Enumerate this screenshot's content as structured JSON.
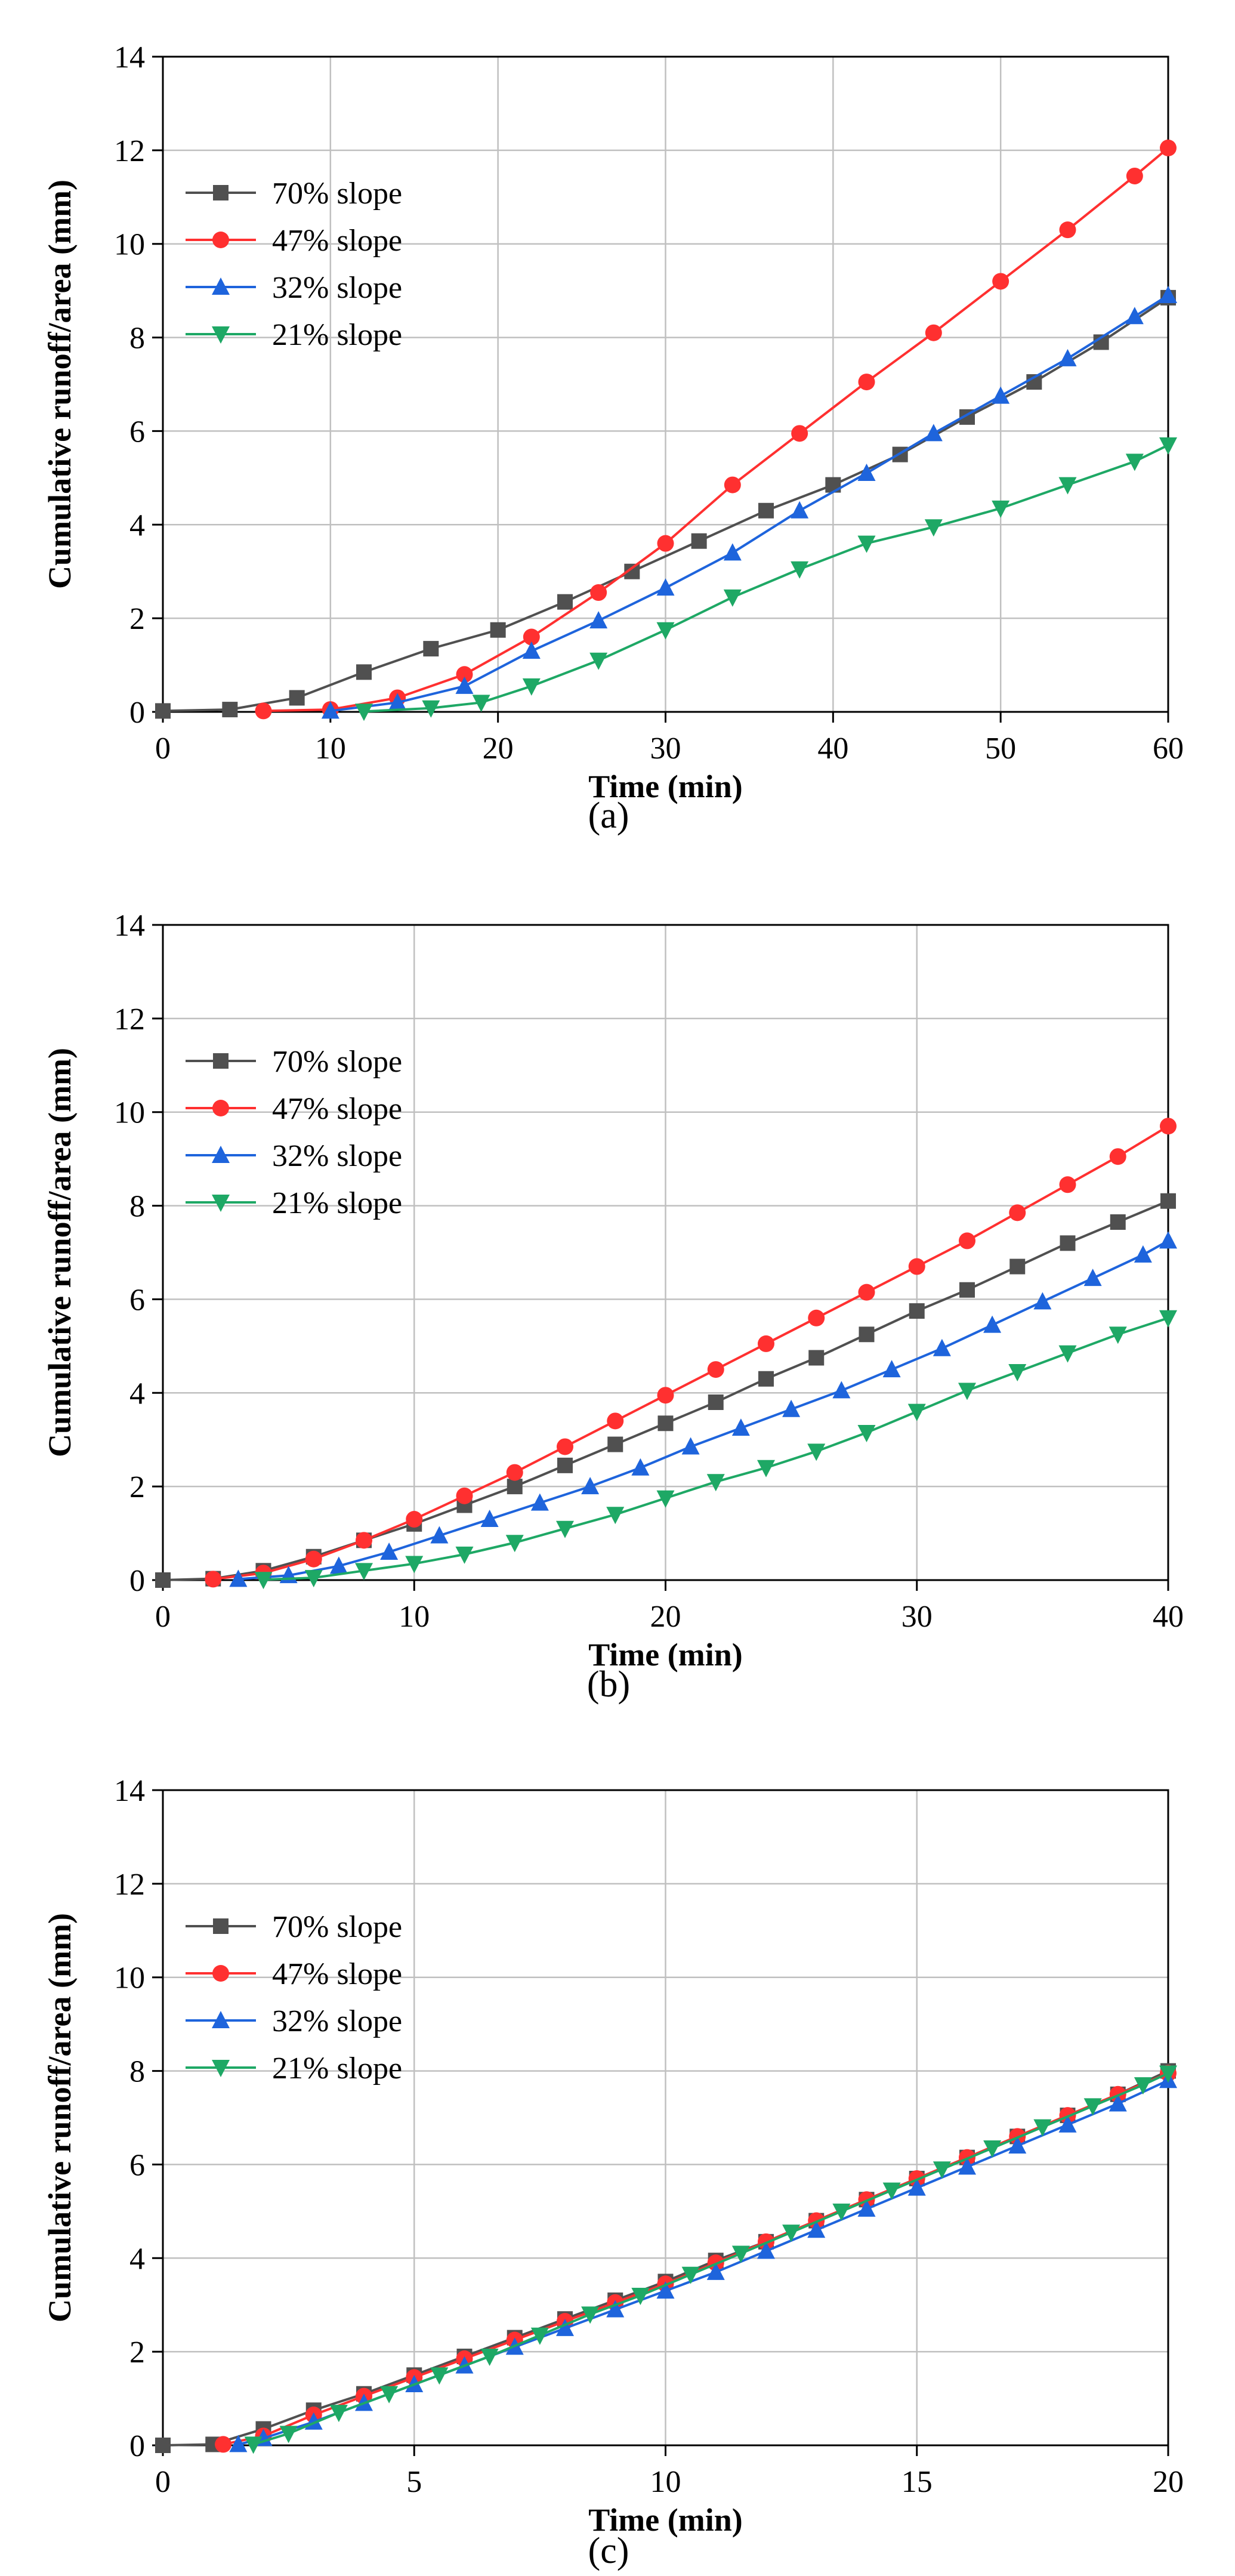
{
  "colors": {
    "70% slope": "#505050",
    "47% slope": "#ff3030",
    "32% slope": "#1e64dc",
    "21% slope": "#1ea865",
    "grid": "#c0c0c0",
    "axis": "#000000"
  },
  "chart_data": [
    {
      "id": "a",
      "type": "line",
      "panel_label": "(a)",
      "xlabel": "Time (min)",
      "ylabel": "Cumulative runoff/area (mm)",
      "xlim": [
        0,
        60
      ],
      "ylim": [
        0,
        14
      ],
      "xticks": [
        0,
        10,
        20,
        30,
        40,
        50,
        60
      ],
      "yticks": [
        0,
        2,
        4,
        6,
        8,
        10,
        12,
        14
      ],
      "grid": true,
      "legend_position": "upper-left",
      "series": [
        {
          "name": "70% slope",
          "marker": "square",
          "x": [
            0,
            4,
            8,
            12,
            16,
            20,
            24,
            28,
            32,
            36,
            40,
            44,
            48,
            52,
            56,
            60
          ],
          "y": [
            0.02,
            0.05,
            0.3,
            0.85,
            1.35,
            1.75,
            2.35,
            3.0,
            3.65,
            4.3,
            4.85,
            5.5,
            6.3,
            7.05,
            7.9,
            8.85
          ]
        },
        {
          "name": "47% slope",
          "marker": "circle",
          "x": [
            6,
            10,
            14,
            18,
            22,
            26,
            30,
            34,
            38,
            42,
            46,
            50,
            54,
            58,
            60
          ],
          "y": [
            0.02,
            0.05,
            0.3,
            0.8,
            1.6,
            2.55,
            3.6,
            4.85,
            5.95,
            7.05,
            8.1,
            9.2,
            10.3,
            11.45,
            12.05
          ]
        },
        {
          "name": "32% slope",
          "marker": "triangle-up",
          "x": [
            10,
            14,
            18,
            22,
            26,
            30,
            34,
            38,
            42,
            46,
            50,
            54,
            58,
            60
          ],
          "y": [
            0.02,
            0.2,
            0.55,
            1.3,
            1.95,
            2.65,
            3.4,
            4.3,
            5.1,
            5.95,
            6.75,
            7.55,
            8.45,
            8.9
          ]
        },
        {
          "name": "21% slope",
          "marker": "triangle-down",
          "x": [
            12,
            16,
            19,
            22,
            26,
            30,
            34,
            38,
            42,
            46,
            50,
            54,
            58,
            60
          ],
          "y": [
            0.01,
            0.08,
            0.2,
            0.55,
            1.1,
            1.75,
            2.45,
            3.05,
            3.6,
            3.95,
            4.35,
            4.85,
            5.35,
            5.7
          ]
        }
      ]
    },
    {
      "id": "b",
      "type": "line",
      "panel_label": "(b)",
      "xlabel": "Time (min)",
      "ylabel": "Cumulative runoff/area (mm)",
      "xlim": [
        0,
        40
      ],
      "ylim": [
        0,
        14
      ],
      "xticks": [
        0,
        10,
        20,
        30,
        40
      ],
      "yticks": [
        0,
        2,
        4,
        6,
        8,
        10,
        12,
        14
      ],
      "grid": true,
      "legend_position": "upper-left",
      "series": [
        {
          "name": "70% slope",
          "marker": "square",
          "x": [
            0,
            2,
            4,
            6,
            8,
            10,
            12,
            14,
            16,
            18,
            20,
            22,
            24,
            26,
            28,
            30,
            32,
            34,
            36,
            38,
            40
          ],
          "y": [
            0.0,
            0.03,
            0.2,
            0.5,
            0.85,
            1.2,
            1.6,
            2.0,
            2.45,
            2.9,
            3.35,
            3.8,
            4.3,
            4.75,
            5.25,
            5.75,
            6.2,
            6.7,
            7.2,
            7.65,
            8.1
          ]
        },
        {
          "name": "47% slope",
          "marker": "circle",
          "x": [
            2,
            4,
            6,
            8,
            10,
            12,
            14,
            16,
            18,
            20,
            22,
            24,
            26,
            28,
            30,
            32,
            34,
            36,
            38,
            40
          ],
          "y": [
            0.02,
            0.15,
            0.45,
            0.85,
            1.3,
            1.8,
            2.3,
            2.85,
            3.4,
            3.95,
            4.5,
            5.05,
            5.6,
            6.15,
            6.7,
            7.25,
            7.85,
            8.45,
            9.05,
            9.7
          ]
        },
        {
          "name": "32% slope",
          "marker": "triangle-up",
          "x": [
            3,
            5,
            7,
            9,
            11,
            13,
            15,
            17,
            19,
            21,
            23,
            25,
            27,
            29,
            31,
            33,
            35,
            37,
            39,
            40
          ],
          "y": [
            0.02,
            0.1,
            0.3,
            0.6,
            0.95,
            1.3,
            1.65,
            2.0,
            2.4,
            2.85,
            3.25,
            3.65,
            4.05,
            4.5,
            4.95,
            5.45,
            5.95,
            6.45,
            6.95,
            7.25
          ]
        },
        {
          "name": "21% slope",
          "marker": "triangle-down",
          "x": [
            4,
            6,
            8,
            10,
            12,
            14,
            16,
            18,
            20,
            22,
            24,
            26,
            28,
            30,
            32,
            34,
            36,
            38,
            40
          ],
          "y": [
            0.01,
            0.05,
            0.2,
            0.35,
            0.55,
            0.8,
            1.1,
            1.4,
            1.75,
            2.1,
            2.4,
            2.75,
            3.15,
            3.6,
            4.05,
            4.45,
            4.85,
            5.25,
            5.6
          ]
        }
      ]
    },
    {
      "id": "c",
      "type": "line",
      "panel_label": "(c)",
      "xlabel": "Time (min)",
      "ylabel": "Cumulative runoff/area (mm)",
      "xlim": [
        0,
        20
      ],
      "ylim": [
        0,
        14
      ],
      "xticks": [
        0,
        5,
        10,
        15,
        20
      ],
      "yticks": [
        0,
        2,
        4,
        6,
        8,
        10,
        12,
        14
      ],
      "grid": true,
      "legend_position": "upper-left",
      "series": [
        {
          "name": "70% slope",
          "marker": "square",
          "x": [
            0,
            1,
            2,
            3,
            4,
            5,
            6,
            7,
            8,
            9,
            10,
            11,
            12,
            13,
            14,
            15,
            16,
            17,
            18,
            19,
            20
          ],
          "y": [
            0.0,
            0.02,
            0.35,
            0.75,
            1.1,
            1.5,
            1.9,
            2.3,
            2.7,
            3.1,
            3.5,
            3.95,
            4.35,
            4.8,
            5.25,
            5.7,
            6.15,
            6.6,
            7.05,
            7.5,
            8.0
          ]
        },
        {
          "name": "47% slope",
          "marker": "circle",
          "x": [
            1.2,
            2,
            3,
            4,
            5,
            6,
            7,
            8,
            9,
            10,
            11,
            12,
            13,
            14,
            15,
            16,
            17,
            18,
            19,
            20
          ],
          "y": [
            0.02,
            0.2,
            0.65,
            1.05,
            1.45,
            1.85,
            2.25,
            2.65,
            3.05,
            3.45,
            3.9,
            4.35,
            4.8,
            5.25,
            5.7,
            6.15,
            6.6,
            7.05,
            7.5,
            7.95
          ]
        },
        {
          "name": "32% slope",
          "marker": "triangle-up",
          "x": [
            1.5,
            2,
            3,
            4,
            5,
            6,
            7,
            8,
            9,
            10,
            11,
            12,
            13,
            14,
            15,
            16,
            17,
            18,
            19,
            20
          ],
          "y": [
            0.02,
            0.15,
            0.5,
            0.9,
            1.3,
            1.7,
            2.1,
            2.5,
            2.9,
            3.3,
            3.7,
            4.15,
            4.6,
            5.05,
            5.5,
            5.95,
            6.4,
            6.85,
            7.3,
            7.8
          ]
        },
        {
          "name": "21% slope",
          "marker": "triangle-down",
          "x": [
            1.8,
            2.5,
            3.5,
            4.5,
            5.5,
            6.5,
            7.5,
            8.5,
            9.5,
            10.5,
            11.5,
            12.5,
            13.5,
            14.5,
            15.5,
            16.5,
            17.5,
            18.5,
            19.5,
            20
          ],
          "y": [
            0.02,
            0.25,
            0.7,
            1.1,
            1.5,
            1.9,
            2.35,
            2.8,
            3.2,
            3.65,
            4.1,
            4.55,
            5.0,
            5.45,
            5.9,
            6.35,
            6.8,
            7.25,
            7.7,
            7.95
          ]
        }
      ]
    }
  ]
}
